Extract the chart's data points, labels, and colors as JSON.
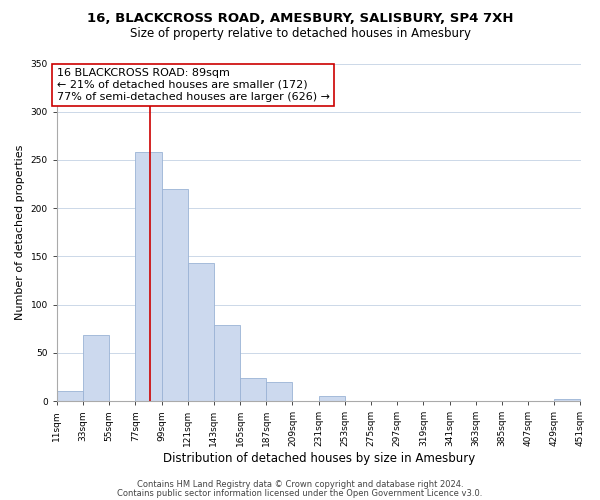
{
  "title": "16, BLACKCROSS ROAD, AMESBURY, SALISBURY, SP4 7XH",
  "subtitle": "Size of property relative to detached houses in Amesbury",
  "xlabel": "Distribution of detached houses by size in Amesbury",
  "ylabel": "Number of detached properties",
  "bin_left_edges": [
    11,
    33,
    55,
    77,
    99,
    121,
    143,
    165,
    187,
    209,
    231,
    253,
    275,
    297,
    319,
    341,
    363,
    385,
    407,
    429
  ],
  "bin_width": 22,
  "bar_heights": [
    10,
    68,
    0,
    258,
    220,
    143,
    79,
    24,
    20,
    0,
    5,
    0,
    0,
    0,
    0,
    0,
    0,
    0,
    0,
    2
  ],
  "bar_color": "#ccd9ee",
  "bar_edgecolor": "#9ab3d5",
  "vline_x": 89,
  "vline_color": "#cc0000",
  "annotation_title": "16 BLACKCROSS ROAD: 89sqm",
  "annotation_line1": "← 21% of detached houses are smaller (172)",
  "annotation_line2": "77% of semi-detached houses are larger (626) →",
  "annotation_box_edgecolor": "#cc0000",
  "annotation_box_facecolor": "#ffffff",
  "tick_labels": [
    "11sqm",
    "33sqm",
    "55sqm",
    "77sqm",
    "99sqm",
    "121sqm",
    "143sqm",
    "165sqm",
    "187sqm",
    "209sqm",
    "231sqm",
    "253sqm",
    "275sqm",
    "297sqm",
    "319sqm",
    "341sqm",
    "363sqm",
    "385sqm",
    "407sqm",
    "429sqm",
    "451sqm"
  ],
  "tick_positions": [
    11,
    33,
    55,
    77,
    99,
    121,
    143,
    165,
    187,
    209,
    231,
    253,
    275,
    297,
    319,
    341,
    363,
    385,
    407,
    429,
    451
  ],
  "xlim": [
    11,
    451
  ],
  "ylim": [
    0,
    350
  ],
  "yticks": [
    0,
    50,
    100,
    150,
    200,
    250,
    300,
    350
  ],
  "footer1": "Contains HM Land Registry data © Crown copyright and database right 2024.",
  "footer2": "Contains public sector information licensed under the Open Government Licence v3.0.",
  "background_color": "#ffffff",
  "grid_color": "#ccd8e8",
  "title_fontsize": 9.5,
  "subtitle_fontsize": 8.5,
  "ylabel_fontsize": 8,
  "xlabel_fontsize": 8.5,
  "tick_fontsize": 6.5,
  "ann_fontsize": 8,
  "footer_fontsize": 6
}
